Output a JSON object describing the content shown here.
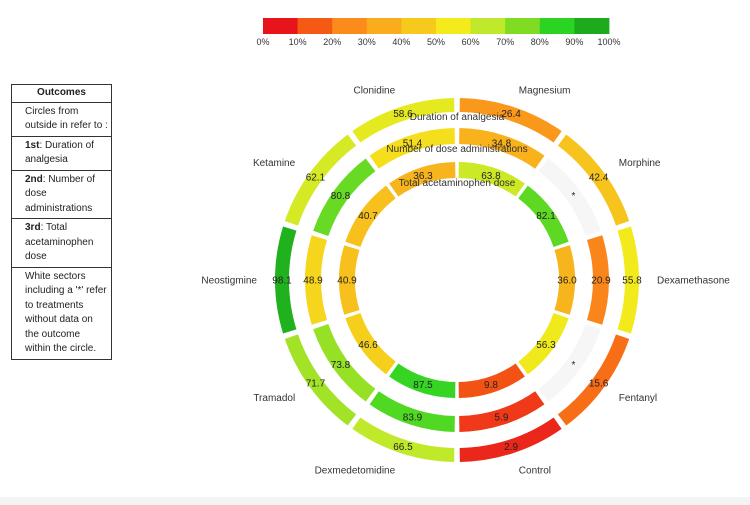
{
  "legend": {
    "title": "Outcomes",
    "rows": [
      {
        "strong": "",
        "text": "Circles from outside in refer to :"
      },
      {
        "strong": "1st",
        "text": ": Duration of analgesia"
      },
      {
        "strong": "2nd",
        "text": ": Number of dose administrations"
      },
      {
        "strong": "3rd",
        "text": ": Total acetaminophen dose"
      },
      {
        "strong": "",
        "text": "White sectors including a '*' refer to treatments without data on the outcome within the circle."
      }
    ]
  },
  "chart_data": {
    "type": "radial-heatmap",
    "color_scale": {
      "stops": [
        "#e8141c",
        "#f55a14",
        "#fb8c1c",
        "#f9ad1c",
        "#f6c91d",
        "#f4ea1c",
        "#bfe92a",
        "#7fdc23",
        "#2bd423",
        "#1dab1d"
      ],
      "tick_labels": [
        "0%",
        "10%",
        "20%",
        "30%",
        "40%",
        "50%",
        "60%",
        "70%",
        "80%",
        "90%",
        "100%"
      ],
      "range": [
        0,
        100
      ]
    },
    "treatments": [
      "Magnesium",
      "Morphine",
      "Dexamethasone",
      "Fentanyl",
      "Control",
      "Dexmedetomidine",
      "Tramadol",
      "Neostigmine",
      "Ketamine",
      "Clonidine"
    ],
    "no_data_label": "*",
    "rings": [
      {
        "name": "Duration of analgesia",
        "values": [
          26.4,
          42.4,
          55.8,
          15.6,
          2.9,
          66.5,
          71.7,
          98.1,
          62.1,
          58.6
        ]
      },
      {
        "name": "Number of dose administrations",
        "values": [
          34.8,
          null,
          20.9,
          null,
          5.9,
          83.9,
          73.8,
          48.9,
          80.8,
          51.4
        ]
      },
      {
        "name": "Total acetaminophen dose",
        "values": [
          63.8,
          82.1,
          36.0,
          56.3,
          9.8,
          87.5,
          46.6,
          40.9,
          40.7,
          36.3
        ]
      }
    ]
  }
}
